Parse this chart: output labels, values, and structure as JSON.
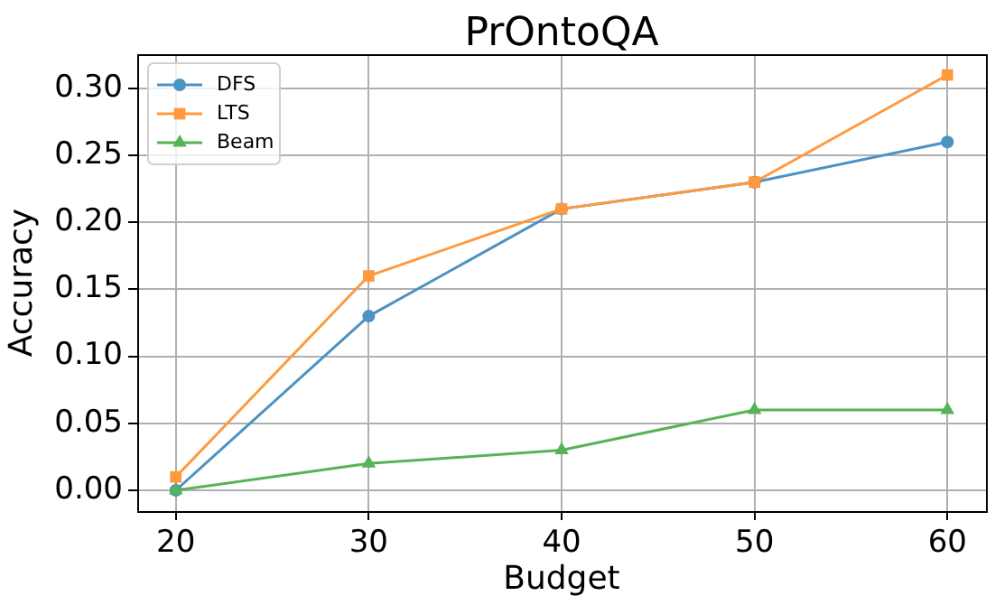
{
  "chart_data": {
    "type": "line",
    "title": "PrOntoQA",
    "xlabel": "Budget",
    "ylabel": "Accuracy",
    "x": [
      20,
      30,
      40,
      50,
      60
    ],
    "series": [
      {
        "name": "DFS",
        "color": "#4c92c3",
        "marker": "circle",
        "values": [
          0,
          0.13,
          0.21,
          0.23,
          0.26
        ]
      },
      {
        "name": "LTS",
        "color": "#ff993e",
        "marker": "square",
        "values": [
          0.01,
          0.16,
          0.21,
          0.23,
          0.31
        ]
      },
      {
        "name": "Beam",
        "color": "#56b356",
        "marker": "triangle",
        "values": [
          0,
          0.02,
          0.03,
          0.06,
          0.06
        ]
      }
    ],
    "xlim": [
      18,
      62
    ],
    "xticks": [
      20,
      30,
      40,
      50,
      60
    ],
    "ylim": [
      -0.0155,
      0.3255
    ],
    "yticks": [
      {
        "value": 0,
        "label": "0.00"
      },
      {
        "value": 0.05,
        "label": "0.05"
      },
      {
        "value": 0.1,
        "label": "0.10"
      },
      {
        "value": 0.15,
        "label": "0.15"
      },
      {
        "value": 0.2,
        "label": "0.20"
      },
      {
        "value": 0.25,
        "label": "0.25"
      },
      {
        "value": 0.3,
        "label": "0.30"
      }
    ],
    "grid": true,
    "legend": "top left"
  }
}
